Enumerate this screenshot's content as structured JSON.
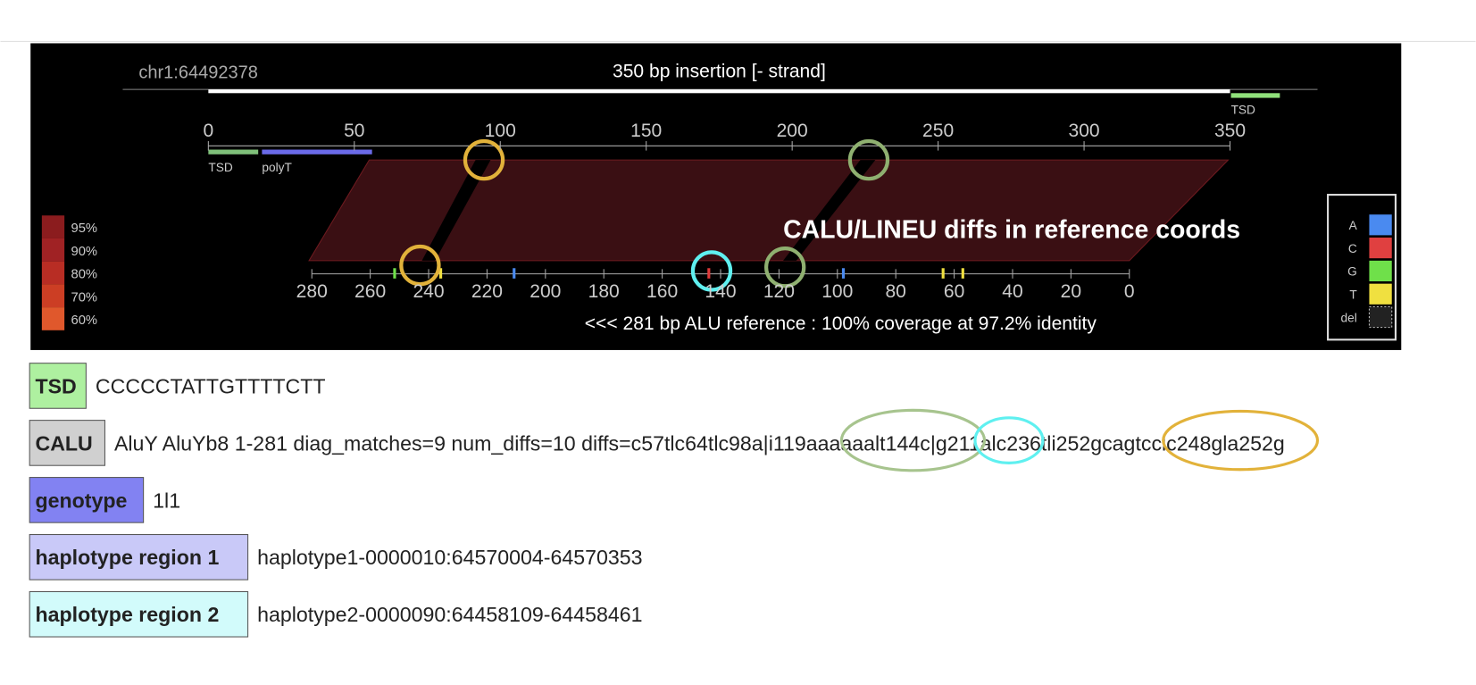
{
  "viewer": {
    "location": "chr1:64492378",
    "title": "350 bp insertion [- strand]",
    "tsd_label": "TSD",
    "top_axis": {
      "ticks": [
        0,
        50,
        100,
        150,
        200,
        250,
        300,
        350
      ]
    },
    "features": [
      "TSD",
      "polyT"
    ],
    "annotation": "CALU/LINEU diffs in reference coords",
    "bottom_axis": {
      "ticks": [
        280,
        260,
        240,
        220,
        200,
        180,
        160,
        140,
        120,
        100,
        80,
        60,
        40,
        20,
        0
      ]
    },
    "caption": "<<< 281 bp ALU reference : 100% coverage at 97.2% identity",
    "identity_legend": [
      "95%",
      "90%",
      "80%",
      "70%",
      "60%"
    ],
    "base_legend": [
      "A",
      "C",
      "G",
      "T",
      "del"
    ]
  },
  "rows": [
    {
      "label": "TSD",
      "value": "CCCCCTATTGTTTTCTT"
    },
    {
      "label": "CALU",
      "value": "AluY AluYb8 1-281 diag_matches=9 num_diffs=10 diffs=c57tlc64tlc98a|i119aaaaaalt144c|g211alc236tli252gcagtcclc248gla252g"
    },
    {
      "label": "genotype",
      "value": "1l1"
    },
    {
      "label": "haplotype region 1",
      "value": "haplotype1-0000010:64570004-64570353"
    },
    {
      "label": "haplotype region 2",
      "value": "haplotype2-0000090:64458109-64458461"
    }
  ]
}
